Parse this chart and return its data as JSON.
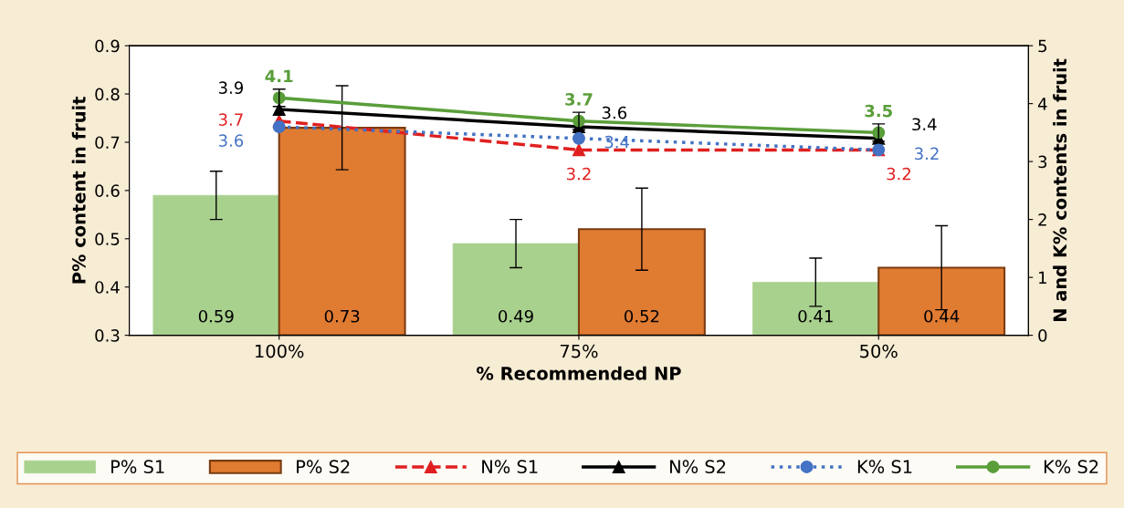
{
  "chart_data": {
    "type": "bar",
    "xlabel": "% Recommended NP",
    "ylabel": "P% content in fruit",
    "y2label": "N and K% contents in fruit",
    "categories": [
      "100%",
      "75%",
      "50%"
    ],
    "ylim": [
      0.3,
      0.9
    ],
    "yticks": [
      0.3,
      0.4,
      0.5,
      0.6,
      0.7,
      0.8,
      0.9
    ],
    "y2lim": [
      0,
      5
    ],
    "y2ticks": [
      0,
      1,
      2,
      3,
      4,
      5
    ],
    "grid": false,
    "legend": "bottom",
    "data_labels": true,
    "series": [
      {
        "name": "P% S1",
        "color": "#a9d18e",
        "values": [
          0.59,
          0.49,
          0.41
        ],
        "errors": [
          0.05,
          0.05,
          0.05
        ]
      },
      {
        "name": "P% S2",
        "color": "#e07b32",
        "values": [
          0.73,
          0.52,
          0.44
        ],
        "errors": [
          0.087,
          0.085,
          0.087
        ]
      },
      {
        "name": "N% S1",
        "type": "line",
        "axis": "y2",
        "color": "#e02020",
        "line_style": "dashed",
        "marker": "triangle",
        "values": [
          3.7,
          3.2,
          3.2
        ]
      },
      {
        "name": "N% S2",
        "type": "line",
        "axis": "y2",
        "color": "#000000",
        "line_style": "solid",
        "marker": "triangle",
        "values": [
          3.9,
          3.6,
          3.4
        ]
      },
      {
        "name": "K% S1",
        "type": "line",
        "axis": "y2",
        "color": "#4472c4",
        "line_style": "dotted",
        "marker": "circle",
        "values": [
          3.6,
          3.4,
          3.2
        ]
      },
      {
        "name": "K% S2",
        "type": "line",
        "axis": "y2",
        "color": "#5a9e3a",
        "line_style": "solid",
        "marker": "circle",
        "values": [
          4.1,
          3.7,
          3.5
        ],
        "errors": [
          0.15,
          0.15,
          0.15
        ]
      }
    ]
  }
}
